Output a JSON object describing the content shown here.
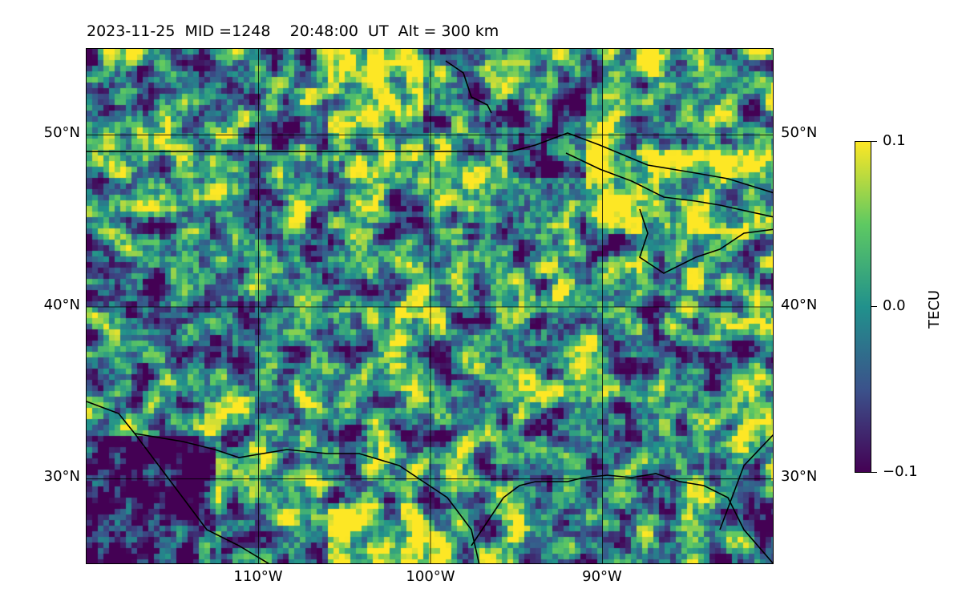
{
  "title": {
    "date": "2023-11-25",
    "mid": "MID =1248",
    "time": "20:48:00  UT",
    "alt": "Alt = 300 km"
  },
  "map": {
    "lon_range": [
      -120,
      -80
    ],
    "lat_range": [
      25,
      55
    ],
    "grid": true,
    "lat_labels": [
      "50°N",
      "40°N",
      "30°N"
    ],
    "lon_labels": [
      "110°W",
      "100°W",
      "90°W"
    ]
  },
  "colorbar": {
    "label": "TECU",
    "colormap": "viridis",
    "min": -0.1,
    "max": 0.1,
    "tick_labels": [
      "0.1",
      "0.0",
      "−0.1"
    ],
    "colors": [
      "#440154",
      "#3b528b",
      "#21918c",
      "#5ec962",
      "#fde725"
    ]
  },
  "chart_data": {
    "type": "heatmap",
    "title": "2023-11-25  MID =1248    20:48:00  UT  Alt = 300 km",
    "quantity": "TECU",
    "value_range": [
      -0.1,
      0.1
    ],
    "xlim": [
      -120,
      -80
    ],
    "ylim": [
      25,
      55
    ],
    "xticks": [
      "110°W",
      "100°W",
      "90°W"
    ],
    "yticks": [
      "50°N",
      "40°N",
      "30°N"
    ]
  }
}
